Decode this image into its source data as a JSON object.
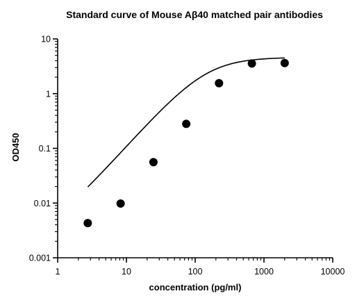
{
  "chart_data": {
    "type": "scatter",
    "title": "Standard curve of Mouse Aβ40 matched pair antibodies",
    "xlabel": "concentration (pg/ml)",
    "ylabel": "OD450",
    "x_scale": "log",
    "y_scale": "log",
    "xlim": [
      1,
      10000
    ],
    "ylim": [
      0.001,
      10
    ],
    "x_ticks": [
      1,
      10,
      100,
      1000,
      10000
    ],
    "x_tick_labels": [
      "1",
      "10",
      "100",
      "1000",
      "10000"
    ],
    "y_ticks": [
      0.001,
      0.01,
      0.1,
      1,
      10
    ],
    "y_tick_labels": [
      "0.001",
      "0.01",
      "0.1",
      "1",
      "10"
    ],
    "grid": false,
    "legend": "none",
    "series": [
      {
        "x": [
          2.74,
          8.23,
          24.7,
          74.1,
          222,
          667,
          2000
        ],
        "y": [
          0.0043,
          0.0098,
          0.056,
          0.28,
          1.55,
          3.55,
          3.62
        ]
      }
    ],
    "fit_curve": {
      "type": "4PL",
      "bottom": 0.002,
      "top": 4.6,
      "ec50": 145,
      "hill": 1.4
    },
    "colors": {
      "points": "#000000",
      "curve": "#000000",
      "axes": "#000000"
    }
  }
}
